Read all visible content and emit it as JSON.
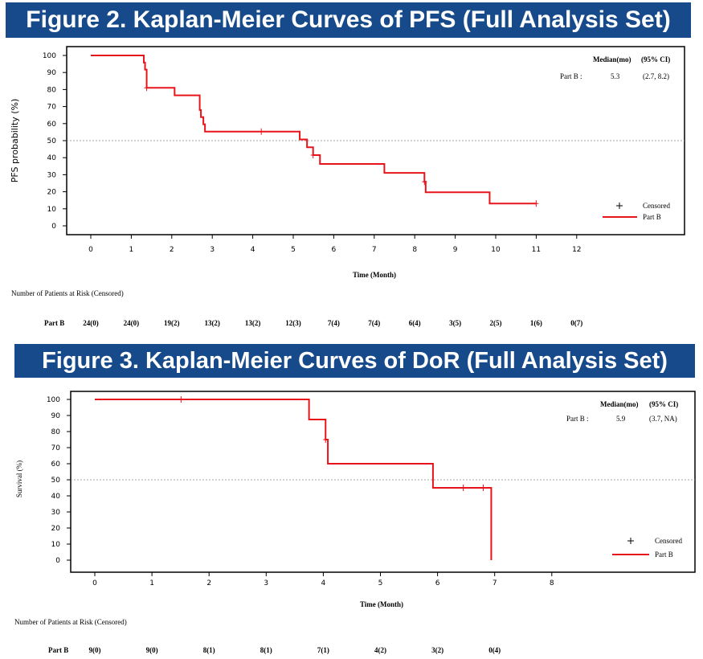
{
  "figures": [
    {
      "title": "Figure 2. Kaplan-Meier Curves of PFS (Full Analysis Set)",
      "xlabel": "Time (Month)",
      "ylabel": "PFS probability (%)",
      "median_header": "Median(mo)",
      "ci_header": "(95% CI)",
      "median_row": {
        "label": "Part B :",
        "median": "5.3",
        "ci": "(2.7, 8.2)"
      },
      "legend": {
        "censored": "Censored",
        "series": "Part B"
      },
      "risk_header": "Number of Patients at Risk (Censored)",
      "risk_row_label": "Part B",
      "risk_values": [
        "24(0)",
        "24(0)",
        "19(2)",
        "13(2)",
        "13(2)",
        "12(3)",
        "7(4)",
        "7(4)",
        "6(4)",
        "3(5)",
        "2(5)",
        "1(6)",
        "0(7)"
      ]
    },
    {
      "title": "Figure 3. Kaplan-Meier Curves of DoR (Full Analysis Set)",
      "xlabel": "Time (Month)",
      "ylabel": "Survival (%)",
      "median_header": "Median(mo)",
      "ci_header": "(95% CI)",
      "median_row": {
        "label": "Part B :",
        "median": "5.9",
        "ci": "(3.7,  NA)"
      },
      "legend": {
        "censored": "Censored",
        "series": "Part B"
      },
      "risk_header": "Number of Patients at Risk (Censored)",
      "risk_row_label": "Part B",
      "risk_values": [
        "9(0)",
        "9(0)",
        "8(1)",
        "8(1)",
        "7(1)",
        "4(2)",
        "3(2)",
        "0(4)"
      ]
    }
  ],
  "chart_data": [
    {
      "type": "line",
      "subtype": "kaplan-meier step",
      "title": "Figure 2. Kaplan-Meier Curves of PFS (Full Analysis Set)",
      "xlabel": "Time (Month)",
      "ylabel": "PFS probability (%)",
      "xlim": [
        0,
        12
      ],
      "ylim": [
        0,
        100
      ],
      "xticks": [
        "0",
        "1",
        "2",
        "3",
        "4",
        "5",
        "6",
        "7",
        "8",
        "9",
        "10",
        "11",
        "12"
      ],
      "yticks": [
        "0",
        "10",
        "20",
        "30",
        "40",
        "50",
        "60",
        "70",
        "80",
        "90",
        "100"
      ],
      "reference_line_y": 50,
      "legend_position": "bottom-right",
      "grid": false,
      "series": [
        {
          "name": "Part B",
          "color": "#e8141b",
          "steps": [
            [
              0,
              100
            ],
            [
              1.31,
              95.8
            ],
            [
              1.34,
              91.7
            ],
            [
              1.38,
              81.0
            ],
            [
              2.07,
              76.6
            ],
            [
              2.69,
              68.0
            ],
            [
              2.72,
              63.8
            ],
            [
              2.78,
              59.6
            ],
            [
              2.82,
              55.3
            ],
            [
              5.16,
              50.7
            ],
            [
              5.34,
              46.1
            ],
            [
              5.49,
              41.5
            ],
            [
              5.66,
              36.3
            ],
            [
              7.25,
              31.1
            ],
            [
              8.24,
              25.9
            ],
            [
              8.27,
              19.7
            ],
            [
              9.85,
              13.1
            ],
            [
              11.0,
              13.1
            ]
          ],
          "censored": [
            [
              1.38,
              81.0
            ],
            [
              4.21,
              55.3
            ],
            [
              5.49,
              41.5
            ],
            [
              8.24,
              25.9
            ],
            [
              11.0,
              13.1
            ]
          ]
        }
      ]
    },
    {
      "type": "line",
      "subtype": "kaplan-meier step",
      "title": "Figure 3. Kaplan-Meier Curves of DoR (Full Analysis Set)",
      "xlabel": "Time (Month)",
      "ylabel": "Survival (%)",
      "xlim": [
        0,
        8
      ],
      "ylim": [
        0,
        100
      ],
      "xticks": [
        "0",
        "1",
        "2",
        "3",
        "4",
        "5",
        "6",
        "7",
        "8"
      ],
      "yticks": [
        "0",
        "10",
        "20",
        "30",
        "40",
        "50",
        "60",
        "70",
        "80",
        "90",
        "100"
      ],
      "reference_line_y": 50,
      "legend_position": "bottom-right",
      "grid": false,
      "series": [
        {
          "name": "Part B",
          "color": "#e8141b",
          "steps": [
            [
              0,
              100
            ],
            [
              3.75,
              87.5
            ],
            [
              4.04,
              75.0
            ],
            [
              4.08,
              60.0
            ],
            [
              5.92,
              45.0
            ],
            [
              6.94,
              0
            ]
          ],
          "censored": [
            [
              1.51,
              100
            ],
            [
              4.04,
              75.0
            ],
            [
              6.45,
              45.0
            ],
            [
              6.8,
              45.0
            ]
          ]
        }
      ]
    }
  ]
}
